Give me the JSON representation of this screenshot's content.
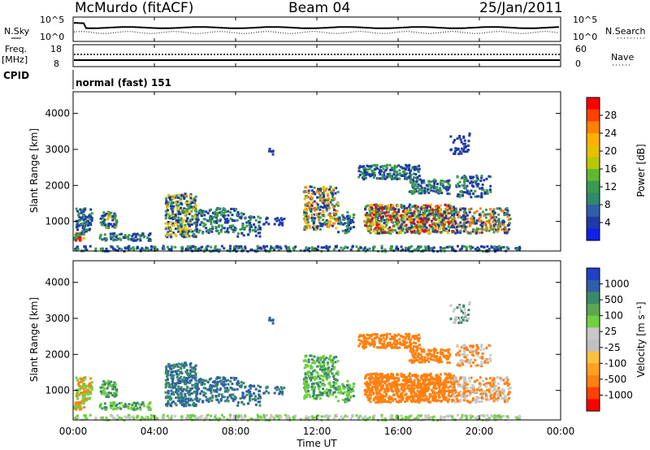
{
  "header": {
    "station": "McMurdo (fitACF)",
    "beam": "Beam 04",
    "date": "25/Jan/2011"
  },
  "strip_labels": {
    "nsky": "N.Sky",
    "nsearch": "N.Search",
    "freq_line1": "Freq.",
    "freq_line2": "[MHz]",
    "nave": "Nave",
    "cpid": "CPID",
    "cpid_value": "normal (fast) 151"
  },
  "chart_data": [
    {
      "type": "line",
      "name": "noise",
      "left_axis": {
        "label": "N.Sky",
        "ticks": [
          "10^5",
          "10^0"
        ]
      },
      "right_axis": {
        "label": "N.Search",
        "ticks": [
          "10^5",
          "10^0"
        ]
      },
      "xlim": [
        "00:00",
        "24:00"
      ]
    },
    {
      "type": "line",
      "name": "frequency-nave",
      "left_axis": {
        "label": "Freq. [MHz]",
        "ticks": [
          "18",
          "8"
        ],
        "ylim": [
          8,
          18
        ]
      },
      "right_axis": {
        "label": "Nave",
        "ticks": [
          "60",
          "0"
        ],
        "ylim": [
          0,
          60
        ]
      },
      "xlim": [
        "00:00",
        "24:00"
      ]
    },
    {
      "type": "heatmap",
      "name": "power",
      "ylabel": "Slant Range [km]",
      "yticks": [
        "4000",
        "3000",
        "2000",
        "1000"
      ],
      "ylim": [
        180,
        4600
      ],
      "xlim": [
        "00:00",
        "24:00"
      ],
      "colorbar": {
        "label": "Power [dB]",
        "ticks": [
          "28",
          "24",
          "20",
          "16",
          "12",
          "8",
          "4"
        ],
        "colors": [
          "#ff0000",
          "#ff4000",
          "#ff8000",
          "#ffb000",
          "#e8c000",
          "#b8c800",
          "#60b830",
          "#3a9a50",
          "#2e8a6a",
          "#2f5fa8",
          "#1f3aa8",
          "#1020e8"
        ]
      }
    },
    {
      "type": "heatmap",
      "name": "velocity",
      "ylabel": "Slant Range [km]",
      "yticks": [
        "4000",
        "3000",
        "2000",
        "1000"
      ],
      "ylim": [
        180,
        4600
      ],
      "xlabel": "Time UT",
      "xticks": [
        "00:00",
        "04:00",
        "08:00",
        "12:00",
        "16:00",
        "20:00",
        "00:00"
      ],
      "xlim": [
        "00:00",
        "24:00"
      ],
      "colorbar": {
        "label": "Velocity [m s⁻¹]",
        "ticks": [
          "1000",
          "500",
          "100",
          "25",
          "-25",
          "-100",
          "-500",
          "-1000"
        ],
        "colors": [
          "#2040c8",
          "#2e5fa8",
          "#3a8a6a",
          "#5aa850",
          "#70d040",
          "#c8c8c8",
          "#c0c0c0",
          "#ffc040",
          "#ffa020",
          "#ff8010",
          "#ff4000",
          "#ff0000"
        ]
      }
    }
  ],
  "colors": {
    "power_blue": "#1f3aa8",
    "power_green": "#3a9a50",
    "power_yellow": "#e8c000",
    "power_orange": "#ff8000",
    "power_red": "#ff0000",
    "vel_blue": "#2e5fa8",
    "vel_green": "#3a8a6a",
    "vel_lightgreen": "#70d040",
    "vel_grey": "#c8c8c8",
    "vel_orange": "#ff8010"
  }
}
